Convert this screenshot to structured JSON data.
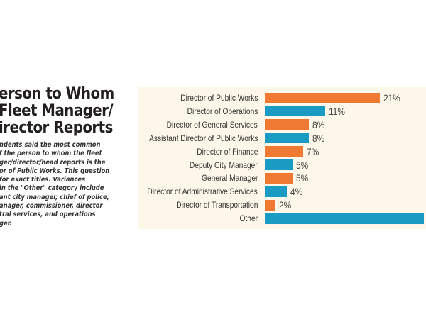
{
  "title_lines": [
    "erson to Whom",
    "Fleet Manager/",
    "irector Reports"
  ],
  "description_lines": [
    "ndents said the most common",
    "f the person to whom the fleet",
    "ger/director/head reports is the",
    "or of Public Works. This question",
    " for exact titles. Variances",
    "in the \"Other\" category include",
    "ant city manager, chief of police,",
    "anager, commissioner, director",
    "tral services, and operations",
    "ger."
  ],
  "chart_data": {
    "type": "bar",
    "orientation": "horizontal",
    "categories": [
      "Director of Public Works",
      "Director of Operations",
      "Director of General Services",
      "Assistant Director of Public Works",
      "Director of Finance",
      "Deputy City Manager",
      "General Manager",
      "Director of Administrative Services",
      "Director of Transportation",
      "Other"
    ],
    "values": [
      21,
      11,
      8,
      8,
      7,
      5,
      5,
      4,
      2,
      29
    ],
    "value_labels": [
      "21%",
      "11%",
      "8%",
      "8%",
      "7%",
      "5%",
      "5%",
      "4%",
      "2%",
      ""
    ],
    "colors": [
      "#f07a32",
      "#1a9bc3",
      "#f07a32",
      "#1a9bc3",
      "#f07a32",
      "#1a9bc3",
      "#f07a32",
      "#1a9bc3",
      "#f07a32",
      "#1a9bc3"
    ],
    "background": "#fcf7e8",
    "grid": false,
    "legend": "none"
  }
}
